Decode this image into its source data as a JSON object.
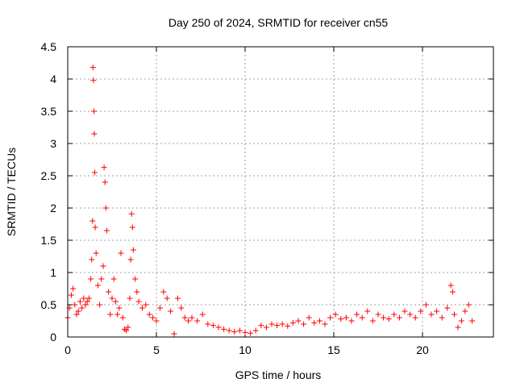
{
  "chart_data": {
    "type": "scatter",
    "title": "Day 250 of 2024, SRMTID for receiver cn55",
    "xlabel": "GPS time / hours",
    "ylabel": "SRMTID / TECUs",
    "xlim": [
      0,
      24
    ],
    "ylim": [
      0,
      4.5
    ],
    "xticks": [
      0,
      5,
      10,
      15,
      20
    ],
    "yticks": [
      0,
      0.5,
      1,
      1.5,
      2,
      2.5,
      3,
      3.5,
      4,
      4.5
    ],
    "grid": true,
    "marker": "+",
    "color": "#ff0000",
    "series": [
      {
        "name": "SRMTID",
        "x": [
          0.0,
          0.1,
          0.2,
          0.3,
          0.4,
          0.5,
          0.6,
          0.7,
          0.8,
          0.9,
          1.0,
          1.1,
          1.2,
          1.3,
          1.35,
          1.4,
          1.42,
          1.45,
          1.48,
          1.5,
          1.52,
          1.55,
          1.6,
          1.7,
          1.8,
          1.9,
          2.0,
          2.05,
          2.1,
          2.15,
          2.2,
          2.3,
          2.4,
          2.5,
          2.6,
          2.7,
          2.8,
          2.9,
          3.0,
          3.1,
          3.2,
          3.3,
          3.4,
          3.5,
          3.55,
          3.6,
          3.65,
          3.7,
          3.8,
          3.9,
          4.0,
          4.2,
          4.4,
          4.6,
          4.8,
          5.0,
          5.2,
          5.4,
          5.6,
          5.8,
          6.0,
          6.2,
          6.4,
          6.6,
          6.8,
          7.0,
          7.3,
          7.6,
          7.9,
          8.2,
          8.5,
          8.8,
          9.1,
          9.4,
          9.7,
          10.0,
          10.3,
          10.6,
          10.9,
          11.2,
          11.5,
          11.8,
          12.1,
          12.4,
          12.7,
          13.0,
          13.3,
          13.6,
          13.9,
          14.2,
          14.5,
          14.8,
          15.1,
          15.4,
          15.7,
          16.0,
          16.3,
          16.6,
          16.9,
          17.2,
          17.5,
          17.8,
          18.1,
          18.4,
          18.7,
          19.0,
          19.3,
          19.6,
          19.9,
          20.2,
          20.5,
          20.8,
          21.1,
          21.4,
          21.6,
          21.7,
          21.8,
          22.0,
          22.2,
          22.4,
          22.6,
          22.8
        ],
        "y": [
          0.3,
          0.45,
          0.65,
          0.75,
          0.5,
          0.35,
          0.4,
          0.55,
          0.45,
          0.6,
          0.5,
          0.55,
          0.6,
          0.9,
          1.2,
          1.8,
          4.18,
          3.98,
          3.5,
          3.15,
          2.55,
          1.7,
          1.3,
          0.8,
          0.5,
          0.9,
          1.1,
          2.63,
          2.4,
          2.0,
          1.65,
          0.7,
          0.35,
          0.6,
          0.9,
          0.55,
          0.35,
          0.45,
          1.3,
          0.3,
          0.12,
          0.1,
          0.15,
          0.6,
          1.2,
          1.91,
          1.7,
          1.35,
          0.9,
          0.7,
          0.55,
          0.45,
          0.5,
          0.35,
          0.3,
          0.25,
          0.45,
          0.7,
          0.6,
          0.4,
          0.05,
          0.6,
          0.45,
          0.3,
          0.25,
          0.3,
          0.25,
          0.35,
          0.2,
          0.18,
          0.15,
          0.12,
          0.1,
          0.08,
          0.1,
          0.07,
          0.06,
          0.1,
          0.18,
          0.15,
          0.2,
          0.18,
          0.2,
          0.17,
          0.22,
          0.25,
          0.2,
          0.3,
          0.22,
          0.25,
          0.2,
          0.3,
          0.35,
          0.28,
          0.3,
          0.25,
          0.35,
          0.3,
          0.4,
          0.25,
          0.35,
          0.3,
          0.28,
          0.35,
          0.3,
          0.4,
          0.35,
          0.3,
          0.4,
          0.5,
          0.35,
          0.4,
          0.3,
          0.45,
          0.8,
          0.7,
          0.35,
          0.15,
          0.25,
          0.4,
          0.5,
          0.25
        ]
      }
    ]
  }
}
